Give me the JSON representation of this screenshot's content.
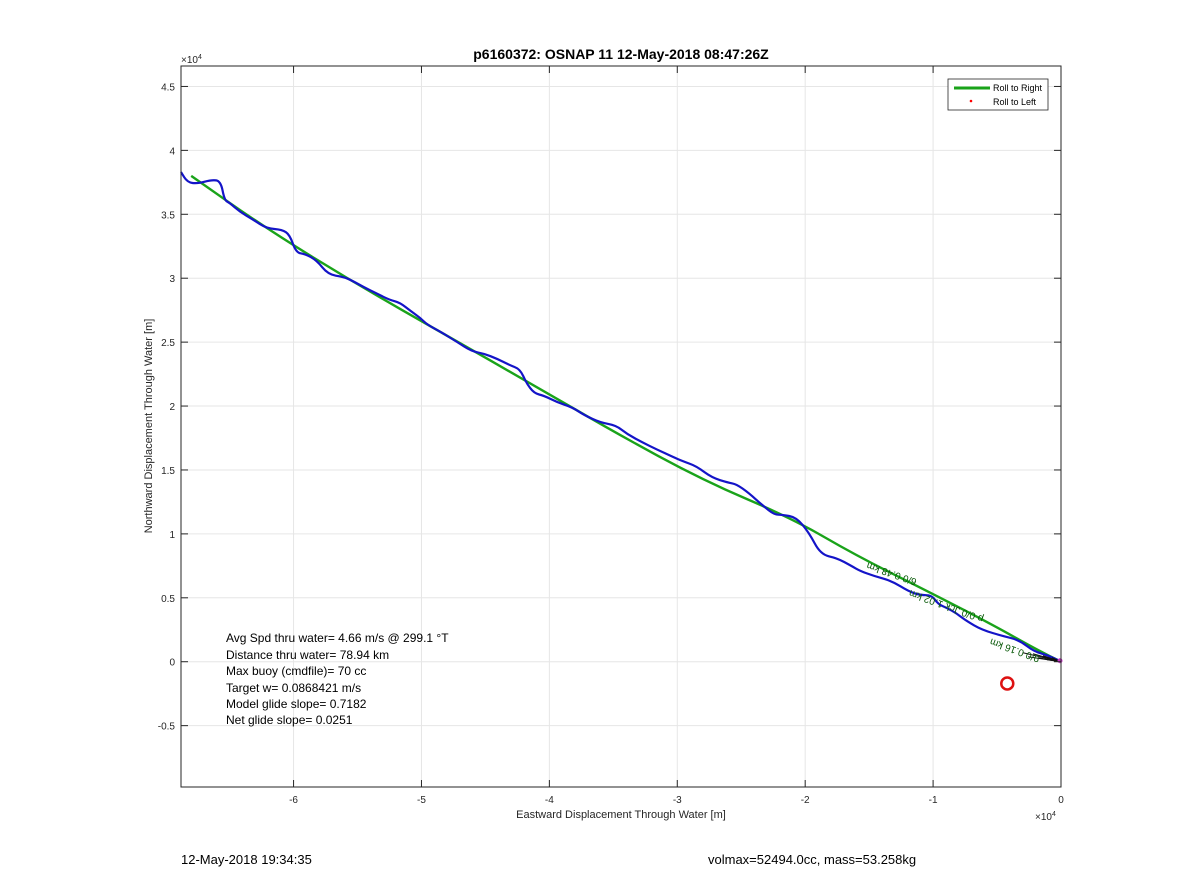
{
  "chart_data": {
    "type": "line",
    "title": "p6160372: OSNAP 11 12-May-2018 08:47:26Z",
    "xlabel": "Eastward Displacement Through Water [m]",
    "ylabel": "Northward Displacement Through Water [m]",
    "x_multiplier_label": "×10",
    "x_multiplier_exp": "4",
    "y_multiplier_label": "×10",
    "y_multiplier_exp": "4",
    "xlim": [
      -68800,
      0
    ],
    "ylim": [
      -9800,
      46600
    ],
    "xticks": [
      -60000,
      -50000,
      -40000,
      -30000,
      -20000,
      -10000,
      0
    ],
    "xtick_labels": [
      "-6",
      "-5",
      "-4",
      "-3",
      "-2",
      "-1",
      "0"
    ],
    "yticks": [
      -5000,
      0,
      5000,
      10000,
      15000,
      20000,
      25000,
      30000,
      35000,
      40000,
      45000
    ],
    "ytick_labels": [
      "-0.5",
      "0",
      "0.5",
      "1",
      "1.5",
      "2",
      "2.5",
      "3",
      "3.5",
      "4",
      "4.5"
    ],
    "grid": true,
    "legend_position": "top-right",
    "series": [
      {
        "name": "Roll to Right",
        "color": "#1aa31a",
        "style": "line",
        "x": [
          -68000,
          -62000,
          -55000,
          -48000,
          -41000,
          -35000,
          -28000,
          -21000,
          -16000,
          -10000,
          -5000,
          -2000,
          0
        ],
        "y": [
          38000,
          33800,
          29500,
          25500,
          21500,
          18000,
          14200,
          11200,
          8300,
          5300,
          2700,
          1000,
          0
        ]
      },
      {
        "name": "Roll to Left",
        "color": "#ff0000",
        "style": "marker",
        "x": [],
        "y": []
      },
      {
        "name": "",
        "color": "#1414c8",
        "style": "line",
        "x": [
          -68800,
          -68300,
          -67500,
          -66400,
          -65700,
          -65400,
          -65000,
          -64200,
          -63200,
          -62100,
          -60900,
          -60300,
          -59800,
          -59100,
          -58200,
          -57300,
          -56100,
          -55400,
          -54500,
          -53500,
          -52500,
          -51700,
          -50800,
          -50100,
          -49600,
          -48500,
          -47200,
          -46100,
          -45100,
          -44100,
          -43100,
          -42300,
          -41800,
          -41200,
          -40400,
          -39400,
          -38200,
          -37300,
          -36000,
          -34800,
          -33900,
          -32800,
          -31600,
          -30300,
          -29600,
          -28500,
          -27300,
          -26000,
          -25400,
          -24400,
          -23300,
          -22400,
          -21800,
          -20700,
          -19700,
          -18800,
          -17500,
          -16400,
          -15700,
          -14600,
          -13200,
          -11900,
          -11000,
          -10100,
          -9600,
          -8900,
          -8200,
          -7400,
          -6200,
          -4500,
          -3300,
          -2100,
          -1000,
          0
        ],
        "y": [
          38300,
          37500,
          37400,
          37700,
          37600,
          36100,
          35900,
          35200,
          34600,
          33900,
          33800,
          33400,
          32000,
          31900,
          31400,
          30300,
          30100,
          29800,
          29300,
          28800,
          28300,
          28100,
          27400,
          26900,
          26400,
          25800,
          25000,
          24300,
          24100,
          23700,
          23200,
          22900,
          21800,
          21000,
          20800,
          20300,
          19900,
          19300,
          18700,
          18500,
          17800,
          17200,
          16600,
          16000,
          15700,
          15300,
          14400,
          14000,
          13900,
          13200,
          12200,
          11500,
          11500,
          11300,
          10100,
          8400,
          8100,
          7500,
          7100,
          6700,
          6300,
          5500,
          5200,
          5200,
          4500,
          4200,
          3800,
          3200,
          2500,
          2000,
          1700,
          800,
          500,
          0
        ]
      }
    ],
    "markers": [
      {
        "name": "target",
        "x": -4200,
        "y": -1700,
        "color": "#dd1111"
      }
    ],
    "path_labels": [
      "6/0 0.48 km",
      "p 0/0 Jck 1.02 km",
      "9/0 0.16 km"
    ],
    "info_lines": [
      "Avg Spd thru water=  4.66 m/s @ 299.1 °T",
      "Distance thru water= 78.94 km",
      "Max buoy (cmdfile)= 70 cc",
      "Target w= 0.0868421 m/s",
      "Model glide slope= 0.7182",
      "Net glide slope= 0.0251"
    ]
  },
  "footer": {
    "left": "12-May-2018 19:34:35",
    "right": "volmax=52494.0cc, mass=53.258kg"
  }
}
